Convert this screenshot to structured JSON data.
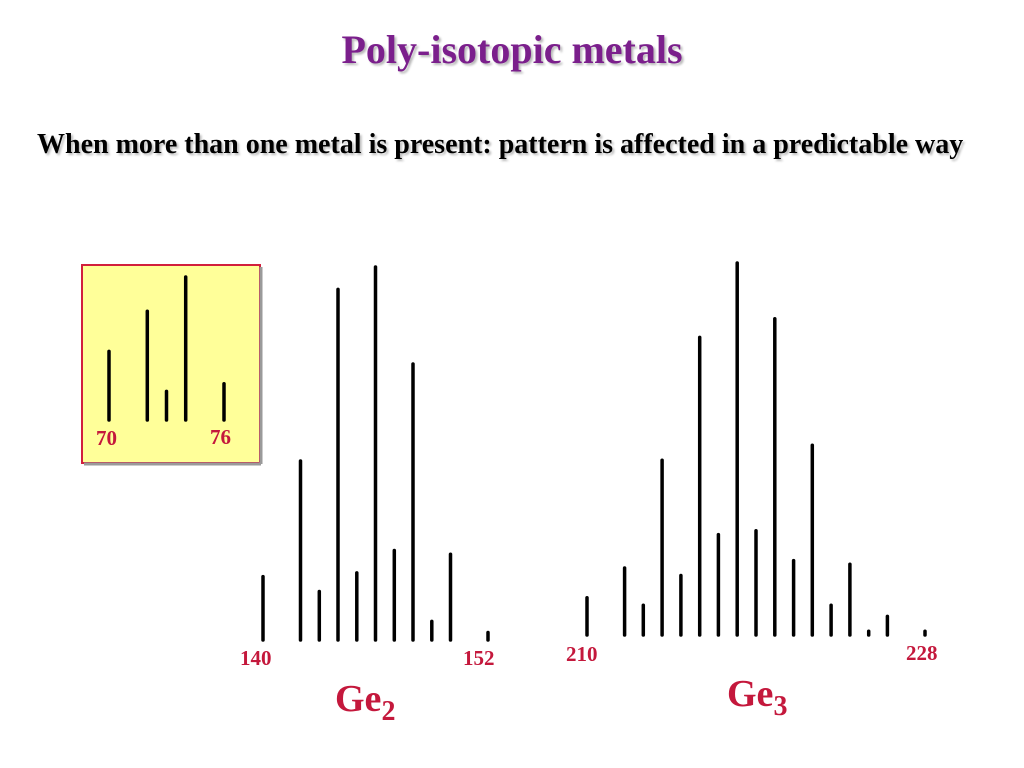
{
  "title": "Poly-isotopic metals",
  "subtitle": "When more than one metal is present: pattern is affected in a predictable way",
  "colors": {
    "title": "#7b1f8c",
    "labels": "#c4183c",
    "inset_background": "#ffff99",
    "inset_border": "#d21f3c",
    "bars": "#000000"
  },
  "chart_data": [
    {
      "id": "ge",
      "type": "bar",
      "x": [
        70,
        72,
        73,
        74,
        76
      ],
      "values": [
        36,
        57,
        15,
        75,
        19
      ],
      "tick_labels": [
        "70",
        "76"
      ],
      "title": "",
      "xlabel": "",
      "ylabel": ""
    },
    {
      "id": "ge2",
      "type": "bar",
      "x": [
        140,
        142,
        143,
        144,
        145,
        146,
        147,
        148,
        149,
        150,
        152
      ],
      "values": [
        17,
        48,
        13,
        94,
        18,
        100,
        24,
        74,
        5,
        23,
        2
      ],
      "tick_labels": [
        "140",
        "152"
      ],
      "formula": {
        "symbol": "Ge",
        "subscript": "2"
      },
      "title": "",
      "xlabel": "",
      "ylabel": ""
    },
    {
      "id": "ge3",
      "type": "bar",
      "x": [
        210,
        212,
        213,
        214,
        215,
        216,
        217,
        218,
        219,
        220,
        221,
        222,
        223,
        224,
        225,
        226,
        228
      ],
      "values": [
        10,
        18,
        8,
        47,
        16,
        80,
        27,
        100,
        28,
        85,
        20,
        51,
        8,
        19,
        1,
        5,
        1
      ],
      "tick_labels": [
        "210",
        "228"
      ],
      "formula": {
        "symbol": "Ge",
        "subscript": "3"
      },
      "title": "",
      "xlabel": "",
      "ylabel": ""
    }
  ]
}
